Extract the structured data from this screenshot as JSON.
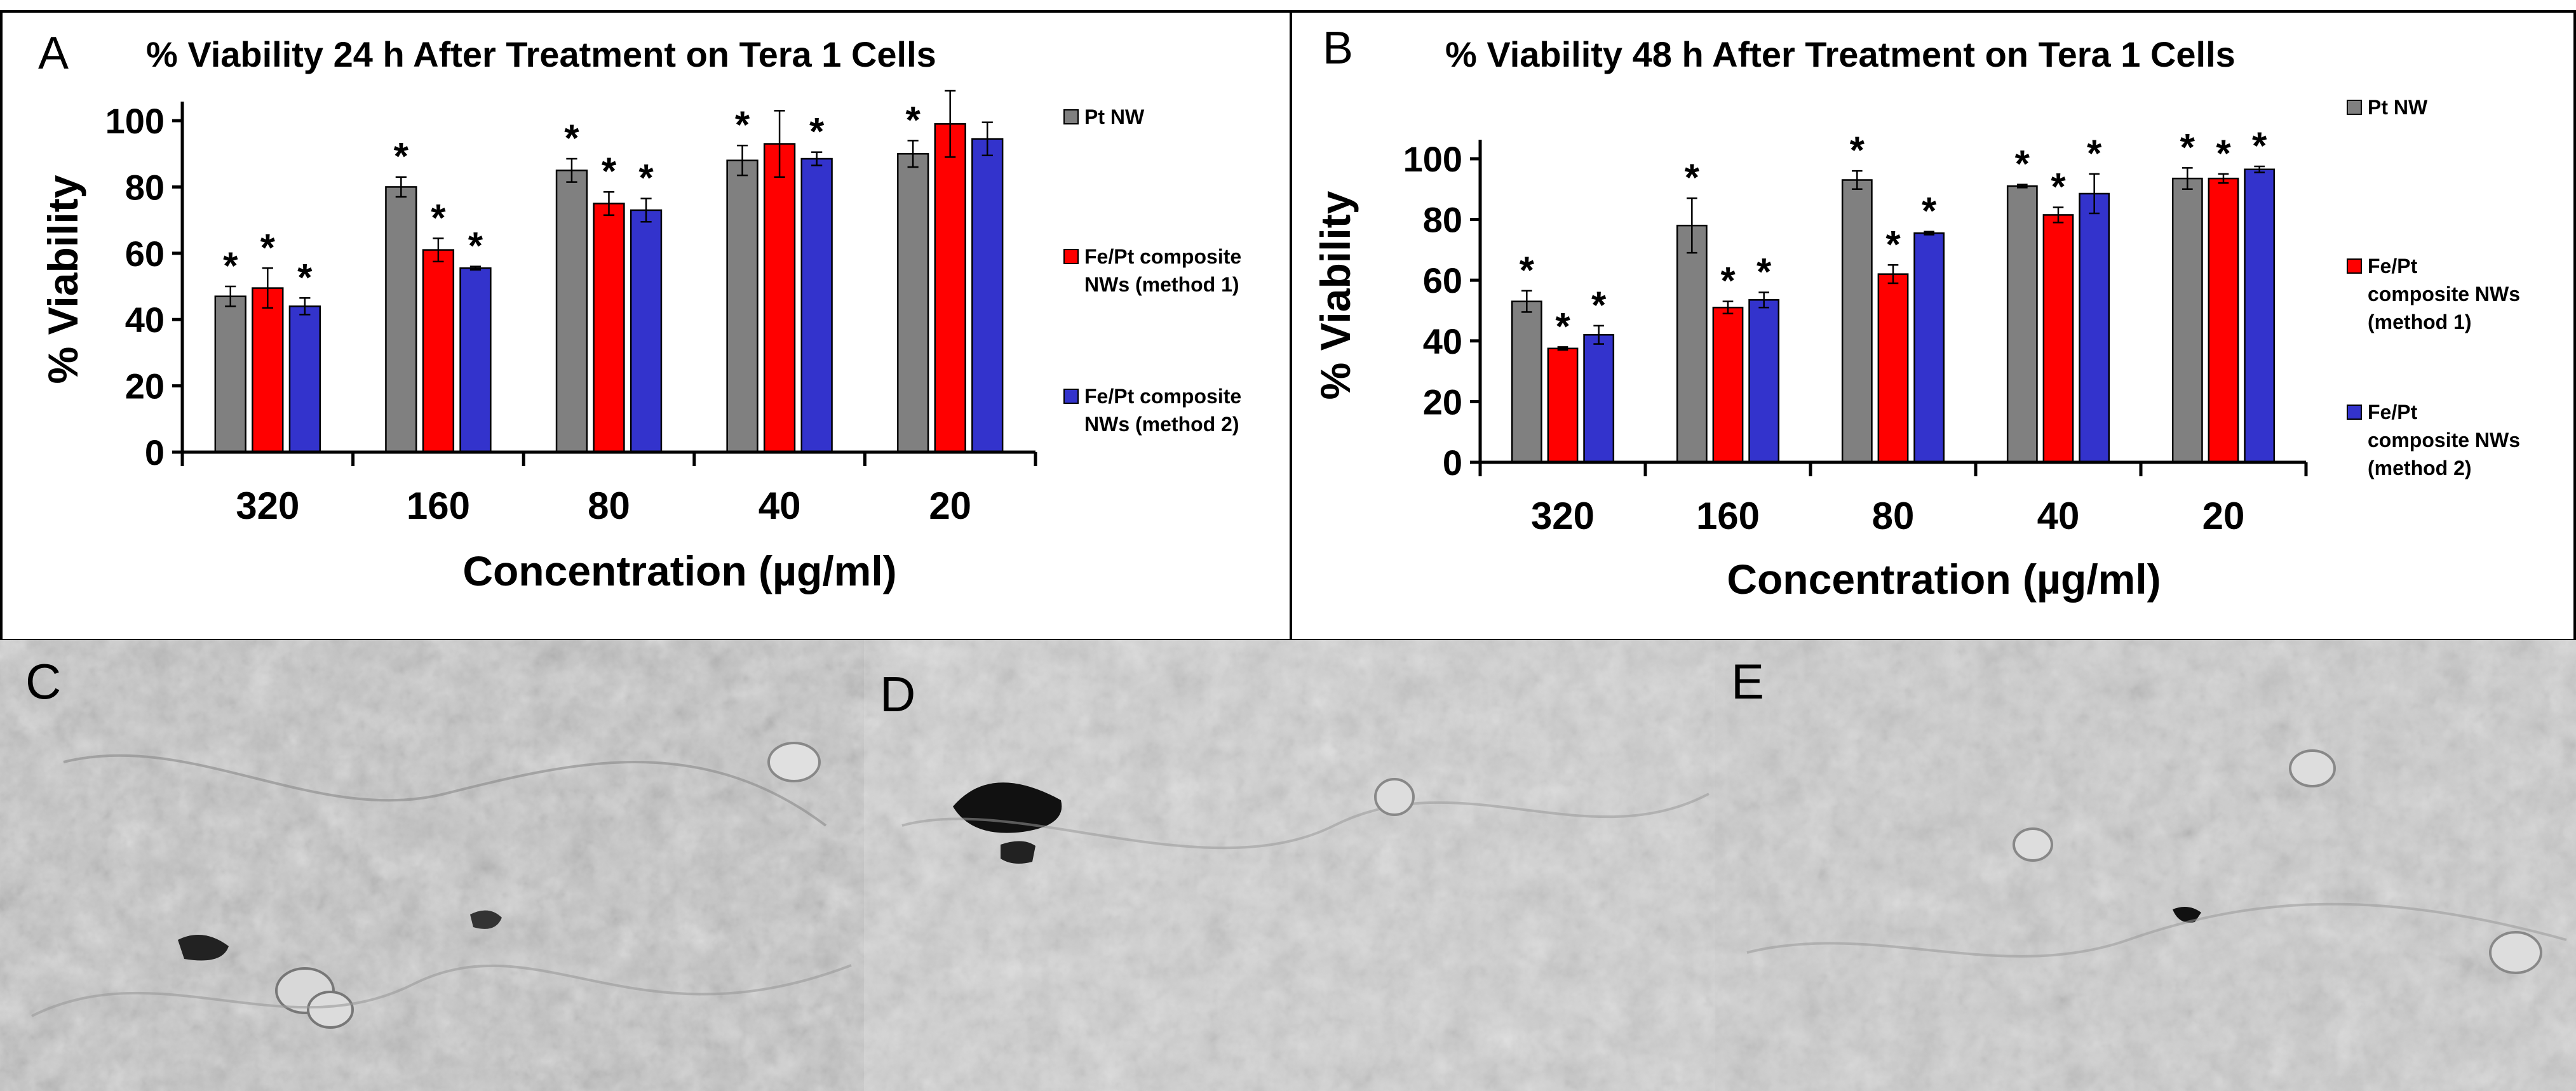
{
  "chart_data": [
    {
      "panel": "A",
      "type": "bar",
      "title": "% Viability 24 h After Treatment on Tera 1 Cells",
      "xlabel": "Concentration (µg/ml)",
      "ylabel": "% Viability",
      "ylim": [
        0,
        100
      ],
      "yticks": [
        0,
        20,
        40,
        60,
        80,
        100
      ],
      "categories": [
        "320",
        "160",
        "80",
        "40",
        "20"
      ],
      "series": [
        {
          "name": "Pt NW",
          "legend_lines": [
            "Pt NW"
          ],
          "color": "#808080",
          "values": [
            47,
            80,
            85,
            88,
            90
          ],
          "errors": [
            3,
            3,
            3.5,
            4.5,
            4
          ],
          "significant": [
            true,
            true,
            true,
            true,
            true
          ]
        },
        {
          "name": "Fe/Pt composite NWs (method 1)",
          "legend_lines": [
            "Fe/Pt composite",
            "NWs (method 1)"
          ],
          "color": "#ff0000",
          "values": [
            49.5,
            61,
            75,
            93,
            99
          ],
          "errors": [
            6,
            3.5,
            3.5,
            10,
            10
          ],
          "significant": [
            true,
            true,
            true,
            false,
            false
          ]
        },
        {
          "name": "Fe/Pt composite NWs (method 2)",
          "legend_lines": [
            "Fe/Pt composite",
            "NWs (method 2)"
          ],
          "color": "#3333cc",
          "values": [
            44,
            55.5,
            73,
            88.5,
            94.5
          ],
          "errors": [
            2.5,
            0.5,
            3.5,
            2,
            5
          ],
          "significant": [
            true,
            true,
            true,
            true,
            false
          ]
        }
      ],
      "significance_marker": "*",
      "legend_position": "right"
    },
    {
      "panel": "B",
      "type": "bar",
      "title": "% Viability 48 h After Treatment on Tera 1 Cells",
      "xlabel": "Concentration (µg/ml)",
      "ylabel": "% Viability",
      "ylim": [
        0,
        100
      ],
      "yticks": [
        0,
        20,
        40,
        60,
        80,
        100
      ],
      "categories": [
        "320",
        "160",
        "80",
        "40",
        "20"
      ],
      "series": [
        {
          "name": "Pt NW",
          "legend_lines": [
            "Pt NW"
          ],
          "color": "#808080",
          "values": [
            53,
            78,
            93,
            91,
            93.5
          ],
          "errors": [
            3.5,
            9,
            3,
            0.5,
            3.5
          ],
          "significant": [
            true,
            true,
            true,
            true,
            true
          ]
        },
        {
          "name": "Fe/Pt composite NWs (method 1)",
          "legend_lines": [
            "Fe/Pt",
            "composite NWs",
            "(method 1)"
          ],
          "color": "#ff0000",
          "values": [
            37.5,
            51,
            62,
            81.5,
            93.5
          ],
          "errors": [
            0.5,
            2,
            3,
            2.5,
            1.5
          ],
          "significant": [
            true,
            true,
            true,
            true,
            true
          ]
        },
        {
          "name": "Fe/Pt composite NWs (method 2)",
          "legend_lines": [
            "Fe/Pt",
            "composite NWs",
            "(method 2)"
          ],
          "color": "#3333cc",
          "values": [
            42,
            53.5,
            75.5,
            88.5,
            96.5
          ],
          "errors": [
            3,
            2.5,
            0.5,
            6.5,
            1
          ],
          "significant": [
            true,
            true,
            true,
            true,
            true
          ]
        }
      ],
      "significance_marker": "*",
      "legend_position": "right"
    }
  ],
  "micrographs": [
    {
      "label": "C",
      "description": "microscopy image"
    },
    {
      "label": "D",
      "description": "microscopy image"
    },
    {
      "label": "E",
      "description": "microscopy image"
    }
  ]
}
